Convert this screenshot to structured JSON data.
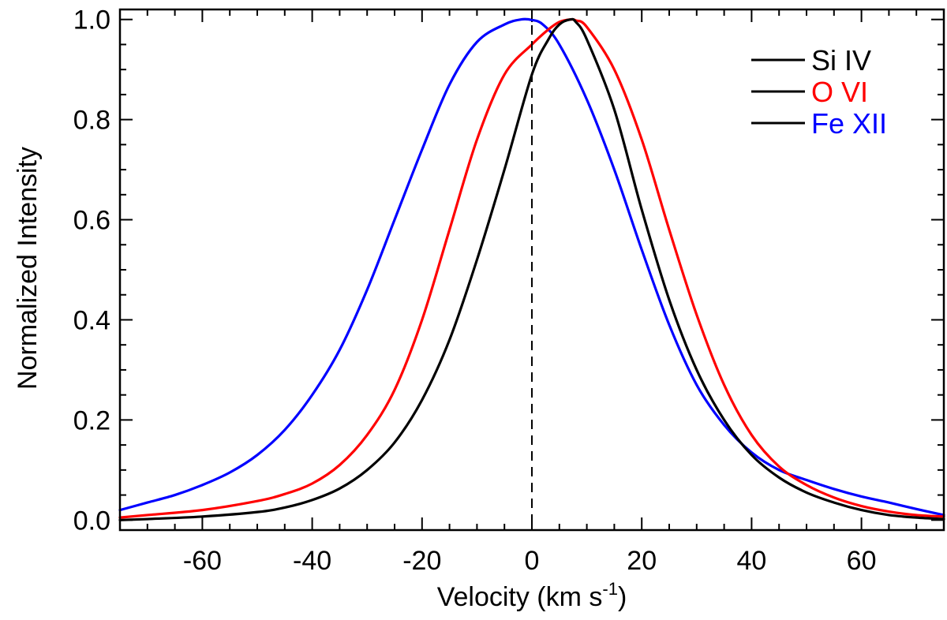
{
  "chart_data": {
    "type": "line",
    "title": "",
    "xlabel": "Velocity (km s",
    "xlabel_sup": "-1",
    "xlabel_close": ")",
    "ylabel": "Normalized Intensity",
    "xlim": [
      -75,
      75
    ],
    "ylim": [
      -0.02,
      1.02
    ],
    "xticks": [
      -60,
      -40,
      -20,
      0,
      20,
      40,
      60
    ],
    "xtick_labels": [
      "-60",
      "-40",
      "-20",
      "0",
      "20",
      "40",
      "60"
    ],
    "yticks": [
      0.0,
      0.2,
      0.4,
      0.6,
      0.8,
      1.0
    ],
    "ytick_labels": [
      "0.0",
      "0.2",
      "0.4",
      "0.6",
      "0.8",
      "1.0"
    ],
    "grid": false,
    "legend_position": "top-right",
    "reference_line": {
      "x": 0,
      "style": "dashed"
    },
    "series": [
      {
        "name": "Si IV",
        "color": "#000000",
        "x": [
          -75,
          -70,
          -60,
          -50,
          -45,
          -40,
          -35,
          -30,
          -25,
          -20,
          -15,
          -10,
          -5,
          0,
          3,
          5,
          7,
          8,
          10,
          15,
          20,
          25,
          30,
          35,
          40,
          45,
          50,
          55,
          60,
          65,
          70,
          75
        ],
        "y": [
          0.0,
          0.002,
          0.007,
          0.016,
          0.025,
          0.04,
          0.063,
          0.1,
          0.155,
          0.24,
          0.36,
          0.52,
          0.7,
          0.89,
          0.96,
          0.99,
          1.0,
          0.995,
          0.96,
          0.82,
          0.62,
          0.44,
          0.3,
          0.2,
          0.13,
          0.085,
          0.055,
          0.035,
          0.02,
          0.01,
          0.005,
          0.002
        ]
      },
      {
        "name": "O VI",
        "color": "#ff0000",
        "x": [
          -75,
          -70,
          -60,
          -50,
          -45,
          -40,
          -35,
          -30,
          -25,
          -20,
          -15,
          -10,
          -5,
          0,
          3,
          5,
          7,
          8,
          10,
          15,
          20,
          25,
          30,
          35,
          40,
          45,
          50,
          55,
          60,
          65,
          70,
          75
        ],
        "y": [
          0.005,
          0.01,
          0.02,
          0.038,
          0.052,
          0.073,
          0.11,
          0.17,
          0.26,
          0.4,
          0.58,
          0.76,
          0.89,
          0.95,
          0.98,
          0.995,
          1.0,
          0.998,
          0.985,
          0.9,
          0.76,
          0.58,
          0.41,
          0.27,
          0.17,
          0.107,
          0.07,
          0.045,
          0.028,
          0.017,
          0.01,
          0.007
        ]
      },
      {
        "name": "Fe XII",
        "color": "#0000ff",
        "x": [
          -75,
          -70,
          -65,
          -60,
          -55,
          -50,
          -45,
          -40,
          -35,
          -30,
          -25,
          -20,
          -15,
          -10,
          -5,
          -2,
          0,
          2,
          5,
          10,
          15,
          20,
          25,
          30,
          35,
          40,
          45,
          50,
          55,
          60,
          65,
          70,
          75
        ],
        "y": [
          0.02,
          0.035,
          0.05,
          0.07,
          0.095,
          0.13,
          0.18,
          0.25,
          0.34,
          0.46,
          0.6,
          0.74,
          0.87,
          0.955,
          0.99,
          1.0,
          0.999,
          0.99,
          0.95,
          0.84,
          0.7,
          0.54,
          0.39,
          0.27,
          0.19,
          0.135,
          0.1,
          0.08,
          0.062,
          0.047,
          0.035,
          0.022,
          0.01
        ]
      }
    ]
  }
}
